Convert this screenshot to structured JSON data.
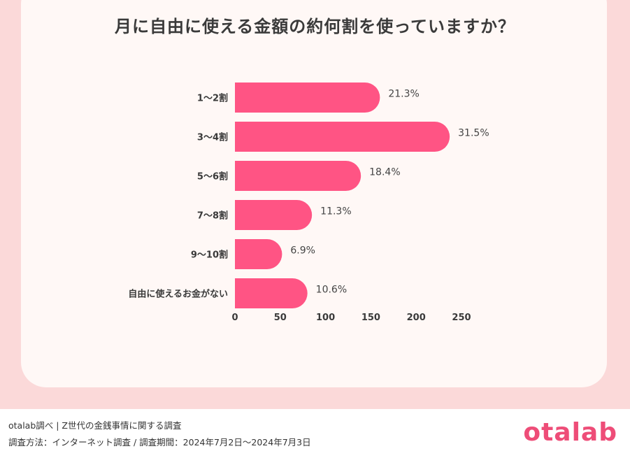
{
  "title": "月に自由に使える金額の約何割を使っていますか？",
  "colors": {
    "bar": "#ff5484",
    "background": "#fbd9d9",
    "card": "#fff8f6",
    "logo": "#ee4d78"
  },
  "chart_data": {
    "type": "bar",
    "orientation": "horizontal",
    "title": "月に自由に使える金額の約何割を使っていますか？",
    "categories": [
      "1〜2割",
      "3〜4割",
      "5〜6割",
      "7〜8割",
      "9〜10割",
      "自由に使えるお金がない"
    ],
    "values": [
      160,
      237,
      139,
      85,
      52,
      80
    ],
    "labels": [
      "21.3%",
      "31.5%",
      "18.4%",
      "11.3%",
      "6.9%",
      "10.6%"
    ],
    "xticks": [
      0,
      50,
      100,
      150,
      200,
      250
    ],
    "xlim": [
      0,
      250
    ],
    "grid": false
  },
  "footer": {
    "line1": "otalab調べ | Z世代の金銭事情に関する調査",
    "line2": "調査方法：インターネット調査 / 調査期間：2024年7月2日〜2024年7月3日"
  },
  "logo": "otalab"
}
